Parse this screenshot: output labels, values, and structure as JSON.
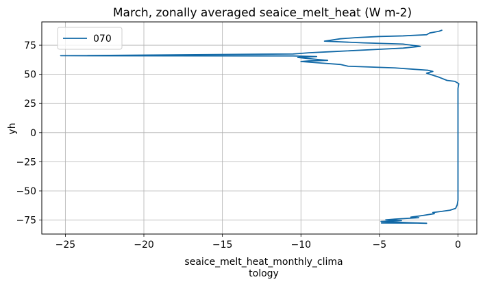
{
  "chart_data": {
    "type": "line",
    "title": "March, zonally averaged seaice_melt_heat (W m-2)",
    "xlabel_lines": [
      "seaice_melt_heat_monthly_clima",
      "tology"
    ],
    "ylabel": "yh",
    "xlim": [
      -26.5,
      1.2
    ],
    "ylim": [
      -87,
      95
    ],
    "xticks": [
      -25,
      -20,
      -15,
      -10,
      -5,
      0
    ],
    "yticks": [
      -75,
      -50,
      -25,
      0,
      25,
      50,
      75
    ],
    "xtick_labels": [
      "−25",
      "−20",
      "−15",
      "−10",
      "−5",
      "0"
    ],
    "ytick_labels": [
      "−75",
      "−50",
      "−25",
      "0",
      "25",
      "50",
      "75"
    ],
    "grid": true,
    "legend_position": "top-left",
    "series": [
      {
        "name": "070",
        "color": "#1068a6",
        "points": [
          [
            -4.9,
            -77.5
          ],
          [
            -2.6,
            -77.6
          ],
          [
            -2.0,
            -77.8
          ],
          [
            -3.0,
            -77.3
          ],
          [
            -4.9,
            -76.2
          ],
          [
            -3.6,
            -75.5
          ],
          [
            -4.6,
            -74.8
          ],
          [
            -4.0,
            -74.2
          ],
          [
            -3.8,
            -74.0
          ],
          [
            -2.5,
            -73.0
          ],
          [
            -3.0,
            -72.5
          ],
          [
            -2.2,
            -71.0
          ],
          [
            -1.5,
            -69.5
          ],
          [
            -1.6,
            -68.5
          ],
          [
            -1.0,
            -67.5
          ],
          [
            -0.5,
            -66.5
          ],
          [
            -0.15,
            -65.0
          ],
          [
            -0.05,
            -62.0
          ],
          [
            0.0,
            -58.0
          ],
          [
            0.0,
            -40.0
          ],
          [
            0.0,
            0.0
          ],
          [
            0.0,
            30.0
          ],
          [
            0.0,
            38.0
          ],
          [
            0.05,
            42.0
          ],
          [
            -0.2,
            44.0
          ],
          [
            -0.7,
            44.8
          ],
          [
            -1.2,
            47.5
          ],
          [
            -2.0,
            51.0
          ],
          [
            -1.6,
            52.5
          ],
          [
            -1.9,
            53.5
          ],
          [
            -4.0,
            55.5
          ],
          [
            -7.0,
            57.0
          ],
          [
            -7.5,
            58.5
          ],
          [
            -8.5,
            59.5
          ],
          [
            -10.0,
            61.0
          ],
          [
            -9.5,
            61.5
          ],
          [
            -8.3,
            62.0
          ],
          [
            -9.5,
            63.5
          ],
          [
            -10.2,
            64.5
          ],
          [
            -9.0,
            65.3
          ],
          [
            -10.5,
            65.8
          ],
          [
            -25.3,
            66.0
          ],
          [
            -10.5,
            67.5
          ],
          [
            -9.5,
            68.5
          ],
          [
            -8.0,
            69.5
          ],
          [
            -5.0,
            71.5
          ],
          [
            -3.5,
            72.5
          ],
          [
            -2.4,
            74.0
          ],
          [
            -3.5,
            76.0
          ],
          [
            -6.0,
            77.0
          ],
          [
            -8.5,
            78.5
          ],
          [
            -7.5,
            80.5
          ],
          [
            -6.5,
            81.5
          ],
          [
            -5.0,
            82.5
          ],
          [
            -3.5,
            83.0
          ],
          [
            -2.0,
            84.0
          ],
          [
            -1.8,
            85.5
          ],
          [
            -1.2,
            87.0
          ],
          [
            -1.0,
            88.0
          ]
        ]
      }
    ]
  }
}
